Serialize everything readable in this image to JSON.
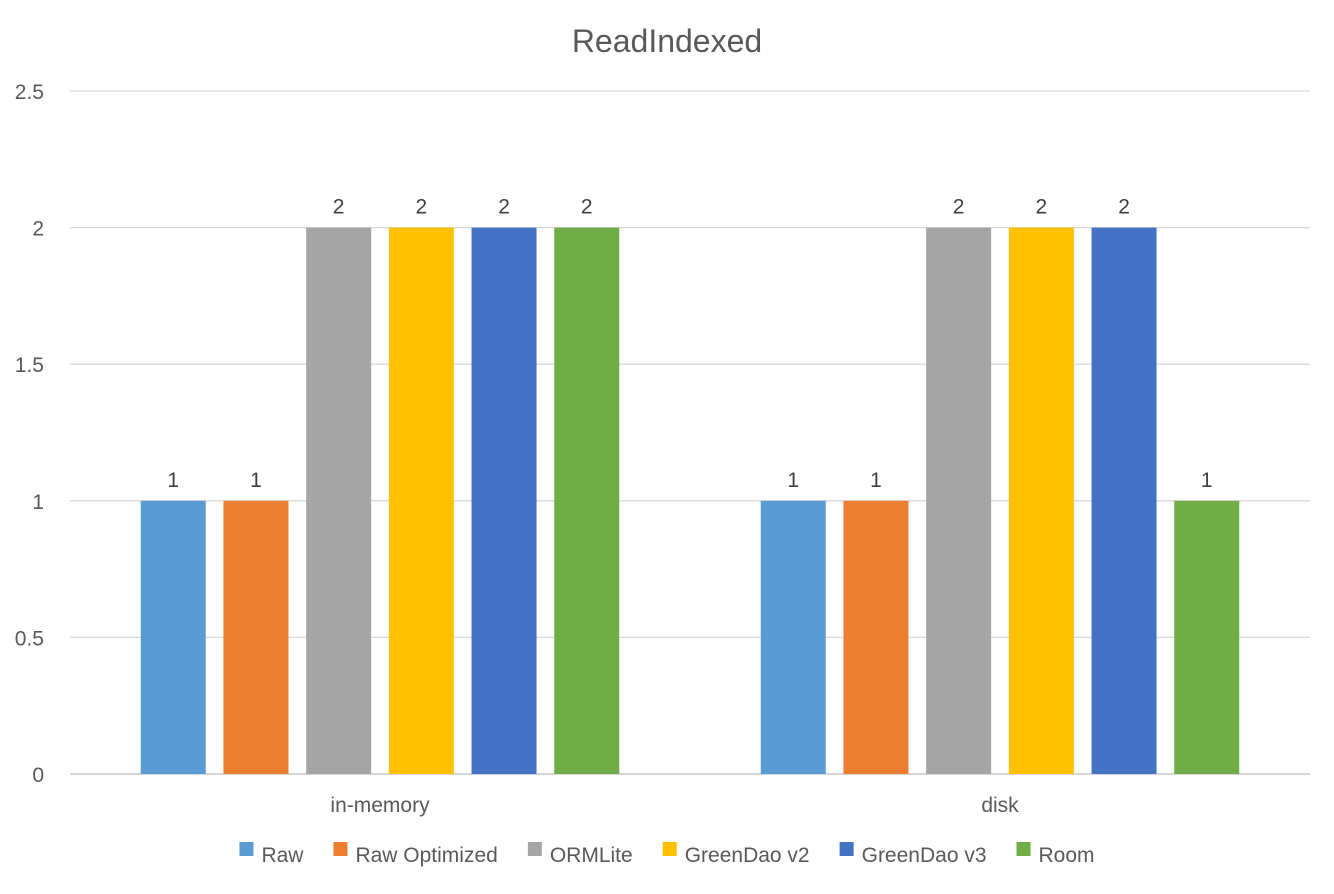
{
  "chart_data": {
    "type": "bar",
    "title": "ReadIndexed",
    "xlabel": "",
    "ylabel": "",
    "categories": [
      "in-memory",
      "disk"
    ],
    "ylim": [
      0,
      2.5
    ],
    "yticks": [
      0,
      0.5,
      1,
      1.5,
      2,
      2.5
    ],
    "ytick_labels": [
      "0",
      "0.5",
      "1",
      "1.5",
      "2",
      "2.5"
    ],
    "grid": true,
    "legend_position": "bottom",
    "data_labels": true,
    "series": [
      {
        "name": "Raw",
        "color": "#5B9BD5",
        "values": [
          1,
          1
        ]
      },
      {
        "name": "Raw Optimized",
        "color": "#ED7D31",
        "values": [
          1,
          1
        ]
      },
      {
        "name": "ORMLite",
        "color": "#A5A5A5",
        "values": [
          2,
          2
        ]
      },
      {
        "name": "GreenDao v2",
        "color": "#FFC000",
        "values": [
          2,
          2
        ]
      },
      {
        "name": "GreenDao v3",
        "color": "#4472C4",
        "values": [
          2,
          2
        ]
      },
      {
        "name": "Room",
        "color": "#70AD47",
        "values": [
          2,
          1
        ]
      }
    ]
  }
}
